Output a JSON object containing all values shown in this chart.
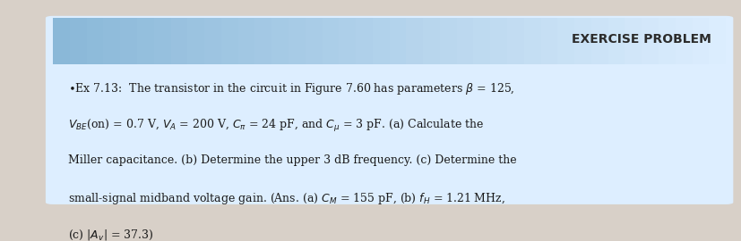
{
  "title": "EXERCISE PROBLEM",
  "title_fontsize": 10,
  "title_color": "#2c2c2c",
  "body_lines": [
    "*Ex 7.13:  The transistor in the circuit in Figure 7.60 has parameters β = 125,",
    "Vᴇᴇ(on) = 0.7 V, Vₐ = 200 V, Cπ = 24 pF, and Cμ = 3 pF. (a) Calculate the",
    "Miller capacitance. (b) Determine the upper 3 dB frequency. (c) Determine the",
    "small-signal midband voltage gain. (Ans. (a) Cₘ = 155 pF, (b) fᴴ = 1.21 MHz,",
    "(c) |Aᵥ| = 37.3)"
  ],
  "body_fontsize": 9,
  "body_color": "#1a1a1a",
  "box_bg_color": "#ddeeff",
  "header_bg_color_start": "#a8d0e8",
  "header_bg_color_end": "#ddeeff",
  "outer_bg_color": "#d8d0c8",
  "fig_width": 8.28,
  "fig_height": 2.7
}
